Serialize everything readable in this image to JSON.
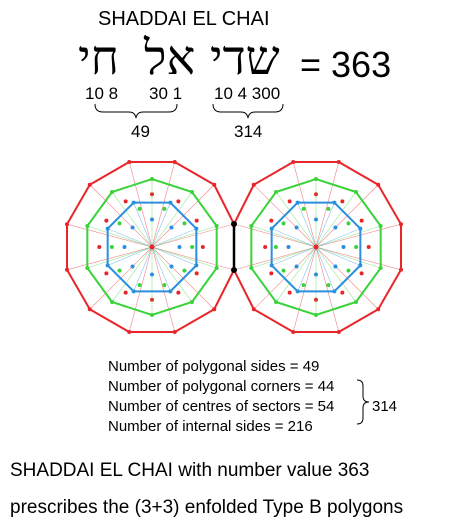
{
  "title": "SHADDAI EL CHAI",
  "hebrew": {
    "chai": "חי",
    "el": "אל",
    "shaddai": "שדי"
  },
  "equation": "= 363",
  "letter_values": {
    "chai": "10 8",
    "el": "30 1",
    "shaddai": "10 4 300"
  },
  "sums": {
    "el_chai": "49",
    "shaddai": "314"
  },
  "stats": [
    "Number of polygonal sides = 49",
    "Number of polygonal corners = 44",
    "Number of centres of sectors = 54",
    "Number of internal sides = 216"
  ],
  "bracket_total": "314",
  "caption": [
    "SHADDAI EL CHAI with number value 363",
    "prescribes the (3+3) enfolded Type B polygons"
  ],
  "colors": {
    "outer": "#e8262a",
    "middle": "#3ad33a",
    "inner": "#2b8fe0",
    "axis": "#000000"
  }
}
